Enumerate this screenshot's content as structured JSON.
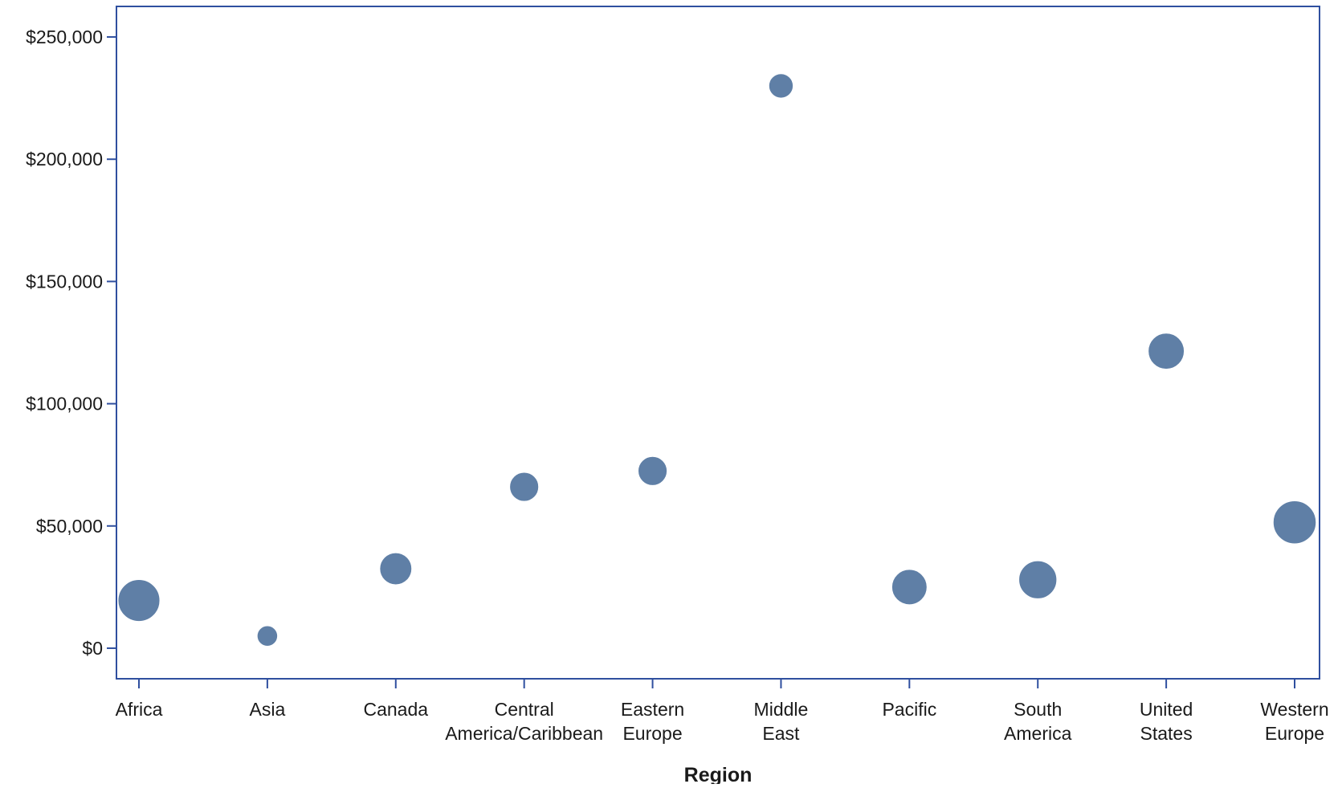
{
  "chart_data": {
    "type": "scatter",
    "title": "",
    "xlabel": "Region",
    "ylabel": "",
    "categories": [
      [
        "Africa"
      ],
      [
        "Asia"
      ],
      [
        "Canada"
      ],
      [
        "Central",
        "America/Caribbean"
      ],
      [
        "Eastern",
        "Europe"
      ],
      [
        "Middle",
        "East"
      ],
      [
        "Pacific"
      ],
      [
        "South",
        "America"
      ],
      [
        "United",
        "States"
      ],
      [
        "Western",
        "Europe"
      ]
    ],
    "y_ticks": [
      {
        "value": 0,
        "label": "$0"
      },
      {
        "value": 50000,
        "label": "$50,000"
      },
      {
        "value": 100000,
        "label": "$100,000"
      },
      {
        "value": 150000,
        "label": "$150,000"
      },
      {
        "value": 200000,
        "label": "$200,000"
      },
      {
        "value": 250000,
        "label": "$250,000"
      }
    ],
    "ylim": [
      -12500,
      262500
    ],
    "points": [
      {
        "category": "Africa",
        "y": 19500,
        "size": 0.95
      },
      {
        "category": "Asia",
        "y": 5000,
        "size": 0.4
      },
      {
        "category": "Canada",
        "y": 32500,
        "size": 0.7
      },
      {
        "category": "Central America/Caribbean",
        "y": 66000,
        "size": 0.62
      },
      {
        "category": "Eastern Europe",
        "y": 72500,
        "size": 0.62
      },
      {
        "category": "Middle East",
        "y": 230000,
        "size": 0.5
      },
      {
        "category": "Pacific",
        "y": 25000,
        "size": 0.78
      },
      {
        "category": "South America",
        "y": 28000,
        "size": 0.85
      },
      {
        "category": "United States",
        "y": 121500,
        "size": 0.8
      },
      {
        "category": "Western Europe",
        "y": 51500,
        "size": 0.98
      }
    ],
    "grid": false,
    "legend": "none",
    "colors": {
      "marker": "#5f7fa6",
      "marker_edge": "#ffffff",
      "axis": "#2f4f9f"
    }
  }
}
